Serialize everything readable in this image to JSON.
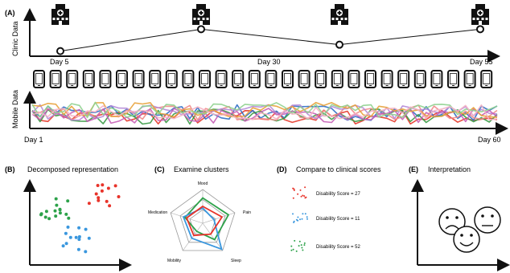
{
  "top": {
    "panel_label": "(A)",
    "clinic_axis_label": "Clinic Data",
    "mobile_axis_label": "Mobile Data",
    "clinic_days": [
      "Day 5",
      "Day 30",
      "Day 55"
    ],
    "mobile_days": [
      "Day 1",
      "Day 60"
    ],
    "clinic_points": [
      {
        "day": "Day 5",
        "level": 0.1
      },
      {
        "day": "Day 20",
        "level": 0.72
      },
      {
        "day": "Day 40",
        "level": 0.28
      },
      {
        "day": "Day 55",
        "level": 0.72
      }
    ],
    "phone_count": 28,
    "mobile_series_colors": [
      "#e53a2b",
      "#2f6fc5",
      "#3a9a45",
      "#f08a8a",
      "#b58ad8",
      "#c75fb6",
      "#e8a23b",
      "#8fd18f",
      "#f4b2c4"
    ]
  },
  "panels": {
    "b": {
      "label": "(B)",
      "title": "Decomposed representation",
      "cluster_colors": [
        "#2da24a",
        "#e8332a",
        "#3a97de"
      ]
    },
    "c": {
      "label": "(C)",
      "title": "Examine clusters",
      "axes": [
        "Mood",
        "Pain",
        "Sleep",
        "Mobility",
        "Medication"
      ]
    },
    "d": {
      "label": "(D)",
      "title": "Compare to clinical scores",
      "scores": [
        {
          "text": "Disability Score = 27",
          "color": "#e8332a"
        },
        {
          "text": "Disability Score = 11",
          "color": "#3a97de"
        },
        {
          "text": "Disability Score = 52",
          "color": "#2da24a"
        }
      ]
    },
    "e": {
      "label": "(E)",
      "title": "Interpretation",
      "faces": [
        "sad-face",
        "neutral-face",
        "happy-face"
      ]
    }
  }
}
